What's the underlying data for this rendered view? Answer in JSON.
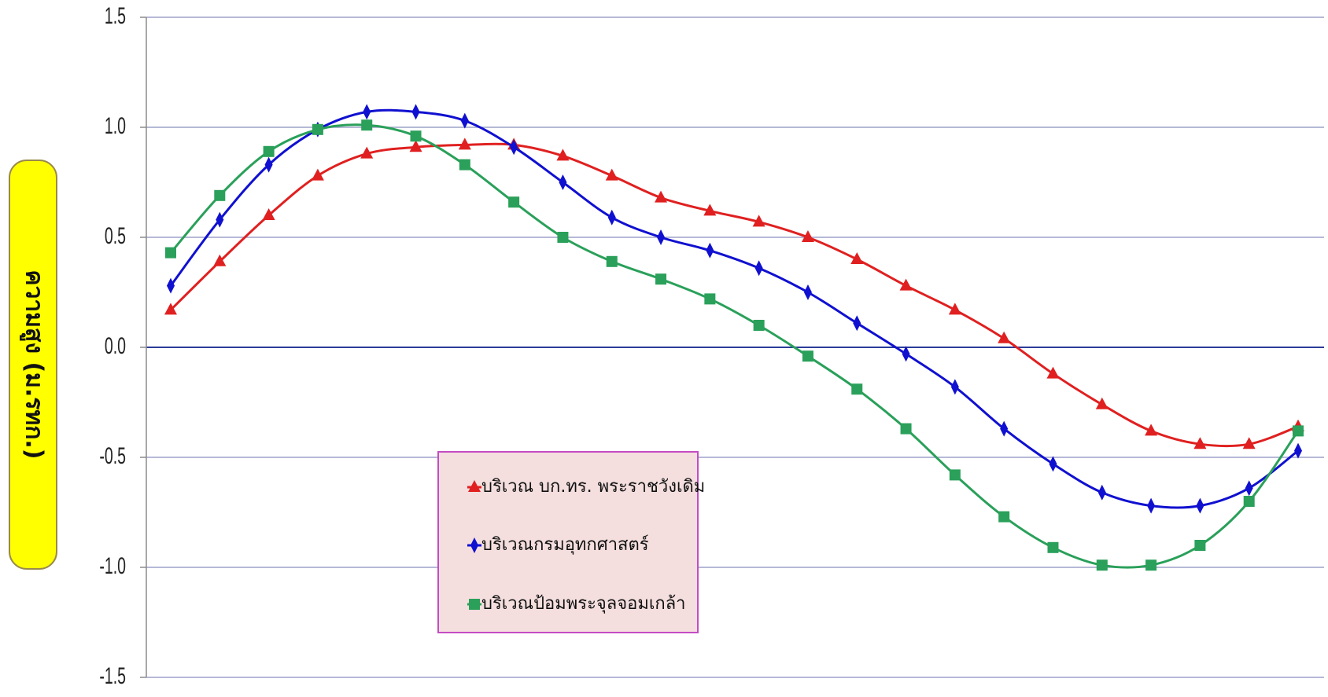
{
  "chart_data": {
    "type": "line",
    "title": "",
    "xlabel": "",
    "ylabel": "ความสูง (ม.รทก.)",
    "ylim": [
      -1.5,
      1.5
    ],
    "yticks": [
      "1.5",
      "1.0",
      "0.5",
      "0.0",
      "-0.5",
      "-1.0",
      "-1.5"
    ],
    "ytick_values": [
      1.5,
      1.0,
      0.5,
      0.0,
      -0.5,
      -1.0,
      -1.5
    ],
    "x": [
      1,
      2,
      3,
      4,
      5,
      6,
      7,
      8,
      9,
      10,
      11,
      12,
      13,
      14,
      15,
      16,
      17,
      18,
      19,
      20,
      21,
      22,
      23,
      24
    ],
    "grid": true,
    "legend_position": "center-left",
    "series": [
      {
        "name": "บริเวณ บก.ทร. พระราชวังเดิม",
        "color": "#e02020",
        "marker": "triangle",
        "values": [
          0.17,
          0.39,
          0.6,
          0.78,
          0.88,
          0.91,
          0.92,
          0.92,
          0.87,
          0.78,
          0.68,
          0.62,
          0.57,
          0.5,
          0.4,
          0.28,
          0.17,
          0.04,
          -0.12,
          -0.26,
          -0.38,
          -0.44,
          -0.44,
          -0.36
        ]
      },
      {
        "name": "บริเวณกรมอุทกศาสตร์",
        "color": "#1010d0",
        "marker": "diamond",
        "values": [
          0.28,
          0.58,
          0.83,
          0.99,
          1.07,
          1.07,
          1.03,
          0.91,
          0.75,
          0.59,
          0.5,
          0.44,
          0.36,
          0.25,
          0.11,
          -0.03,
          -0.18,
          -0.37,
          -0.53,
          -0.66,
          -0.72,
          -0.72,
          -0.64,
          -0.47
        ]
      },
      {
        "name": "บริเวณป้อมพระจุลจอมเกล้า",
        "color": "#2aa05a",
        "marker": "square",
        "values": [
          0.43,
          0.69,
          0.89,
          0.99,
          1.01,
          0.96,
          0.83,
          0.66,
          0.5,
          0.39,
          0.31,
          0.22,
          0.1,
          -0.04,
          -0.19,
          -0.37,
          -0.58,
          -0.77,
          -0.91,
          -0.99,
          -0.99,
          -0.9,
          -0.7,
          -0.38
        ]
      }
    ]
  },
  "style": {
    "gridline_color": "#9ea2c8",
    "zero_line_color": "#2b3c9a",
    "axis_color": "#8c8c8c",
    "ylabel_box_fill": "#ffff00",
    "ylabel_box_border": "#9a8a4a",
    "legend_fill": "#f4dede",
    "legend_border": "#c44cc4"
  }
}
